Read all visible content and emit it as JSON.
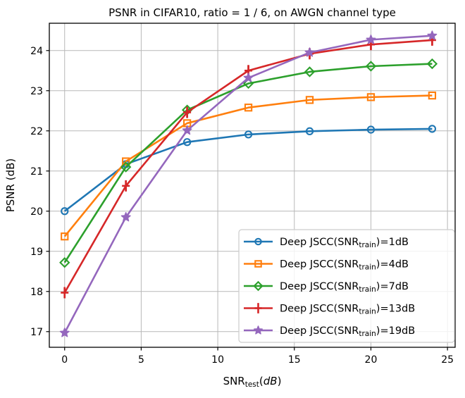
{
  "title": "PSNR in CIFAR10, ratio = 1 / 6, on AWGN channel type",
  "chart_data": {
    "type": "line",
    "title": "PSNR in CIFAR10, ratio = 1 / 6, on AWGN channel type",
    "xlabel": "SNR_test(dB)",
    "ylabel": "PSNR (dB)",
    "xlabel_parts": {
      "main": "SNR",
      "sub": "test",
      "open": "(",
      "unit": "dB",
      "close": ")"
    },
    "x": [
      0,
      4,
      8,
      12,
      16,
      20,
      24
    ],
    "series": [
      {
        "label": "Deep JSCC(SNR_train)=1dB",
        "label_parts": {
          "prefix": "Deep JSCC(SNR",
          "sub": "train",
          "suffix": ")=1dB"
        },
        "color": "#1f77b4",
        "marker": "circle",
        "values": [
          20.0,
          21.17,
          21.72,
          21.91,
          21.99,
          22.03,
          22.05
        ]
      },
      {
        "label": "Deep JSCC(SNR_train)=4dB",
        "label_parts": {
          "prefix": "Deep JSCC(SNR",
          "sub": "train",
          "suffix": ")=4dB"
        },
        "color": "#ff7f0e",
        "marker": "square",
        "values": [
          19.37,
          21.24,
          22.19,
          22.58,
          22.77,
          22.84,
          22.88
        ]
      },
      {
        "label": "Deep JSCC(SNR_train)=7dB",
        "label_parts": {
          "prefix": "Deep JSCC(SNR",
          "sub": "train",
          "suffix": ")=7dB"
        },
        "color": "#2ca02c",
        "marker": "diamond",
        "values": [
          18.72,
          21.1,
          22.52,
          23.18,
          23.47,
          23.61,
          23.67
        ]
      },
      {
        "label": "Deep JSCC(SNR_train)=13dB",
        "label_parts": {
          "prefix": "Deep JSCC(SNR",
          "sub": "train",
          "suffix": ")=13dB"
        },
        "color": "#d62728",
        "marker": "plus",
        "yerr": 0.13,
        "values": [
          17.97,
          20.63,
          22.46,
          23.5,
          23.92,
          24.15,
          24.26
        ]
      },
      {
        "label": "Deep JSCC(SNR_train)=19dB",
        "label_parts": {
          "prefix": "Deep JSCC(SNR",
          "sub": "train",
          "suffix": ")=19dB"
        },
        "color": "#9467bd",
        "marker": "star",
        "values": [
          16.97,
          19.85,
          22.01,
          23.32,
          23.95,
          24.27,
          24.37
        ]
      }
    ],
    "xticks": [
      0,
      5,
      10,
      15,
      20,
      25
    ],
    "yticks": [
      17,
      18,
      19,
      20,
      21,
      22,
      23,
      24
    ],
    "xlim": [
      -1.0,
      25.5
    ],
    "ylim": [
      16.61,
      24.68
    ],
    "grid": true,
    "grid_color": "#b8b8b8",
    "legend_position": "lower right"
  }
}
